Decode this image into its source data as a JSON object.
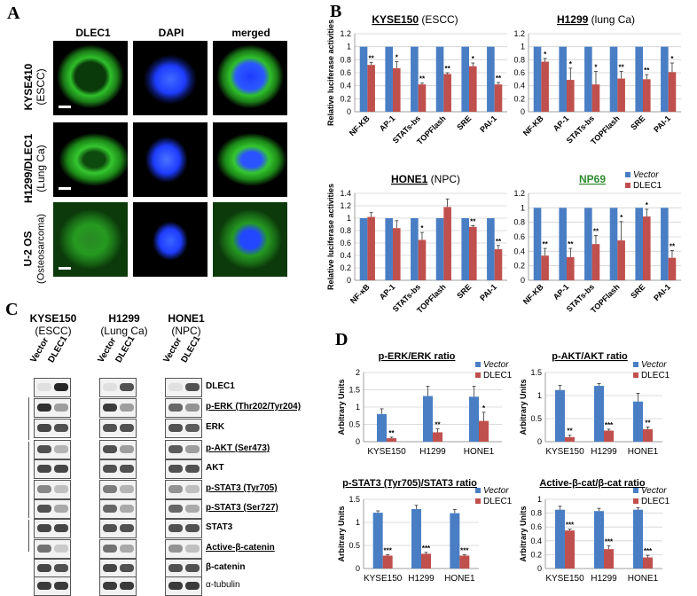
{
  "panels": {
    "a": "A",
    "b": "B",
    "c": "C",
    "d": "D"
  },
  "panel_a": {
    "columns": [
      "DLEC1",
      "DAPI",
      "merged"
    ],
    "rows": [
      {
        "line1": "KYSE410",
        "line2": "(ESCC)"
      },
      {
        "line1": "H1299/DLEC1",
        "line2": "(Lung Ca)"
      },
      {
        "line1": "U-2 OS",
        "line2": "(Osteosarcoma)"
      }
    ],
    "colors": {
      "green": "#2fbf2a",
      "blue": "#1e3dff",
      "black": "#000000"
    }
  },
  "panel_c": {
    "cells": [
      {
        "name": "KYSE150",
        "sub": "(ESCC)"
      },
      {
        "name": "H1299",
        "sub": "(Lung Ca)"
      },
      {
        "name": "HONE1",
        "sub": "(NPC)"
      }
    ],
    "lanes": [
      "Vector",
      "DLEC1"
    ],
    "blots": [
      "DLEC1",
      "p-ERK (Thr202/Tyr204)",
      "ERK",
      "p-AKT (Ser473)",
      "AKT",
      "p-STAT3 (Tyr705)",
      "p-STAT3 (Ser727)",
      "STAT3",
      "Active-β-catenin",
      "β-catenin",
      "α-tubulin"
    ]
  },
  "colors": {
    "vector": "#4a7ec4",
    "dlec1": "#c0504d",
    "grid": "#d0d0d0"
  },
  "chart_data": [
    {
      "id": "b1",
      "type": "bar",
      "title_bold": "KYSE150",
      "title_rest": " (ESCC)",
      "ylabel": "Relative luciferase activities",
      "ylim": [
        0,
        1.2
      ],
      "yticks": [
        "0",
        "0.2",
        "0.4",
        "0.6",
        "0.8",
        "1",
        "1.2"
      ],
      "categories": [
        "NF-KB",
        "AP-1",
        "STATs-bs",
        "TOPFlash",
        "SRE",
        "PAI-1"
      ],
      "series": [
        {
          "name": "Vector",
          "values": [
            1,
            1,
            1,
            1,
            1,
            1
          ]
        },
        {
          "name": "DLEC1",
          "values": [
            0.72,
            0.67,
            0.42,
            0.58,
            0.7,
            0.42
          ],
          "err": [
            0.04,
            0.1,
            0.02,
            0.02,
            0.05,
            0.03
          ]
        }
      ],
      "sig": [
        "**",
        "*",
        "**",
        "**",
        "*",
        "**"
      ]
    },
    {
      "id": "b2",
      "type": "bar",
      "title_bold": "H1299",
      "title_rest": " (lung Ca)",
      "ylabel": "",
      "ylim": [
        0,
        1.2
      ],
      "yticks": [
        "0",
        "0.2",
        "0.4",
        "0.6",
        "0.8",
        "1",
        "1.2"
      ],
      "categories": [
        "NF-KB",
        "AP-1",
        "STATs-bs",
        "TOPFlash",
        "SRE",
        "PAI-1"
      ],
      "series": [
        {
          "name": "Vector",
          "values": [
            1,
            1,
            1,
            1,
            1,
            1
          ]
        },
        {
          "name": "DLEC1",
          "values": [
            0.77,
            0.49,
            0.42,
            0.51,
            0.5,
            0.61
          ],
          "err": [
            0.05,
            0.18,
            0.2,
            0.11,
            0.07,
            0.14
          ]
        }
      ],
      "sig": [
        "*",
        "*",
        "*",
        "**",
        "**",
        "*"
      ]
    },
    {
      "id": "b3",
      "type": "bar",
      "title_bold": "HONE1",
      "title_rest": " (NPC)",
      "ylabel": "Relative luciferase activities",
      "ylim": [
        0,
        1.4
      ],
      "yticks": [
        "0",
        "0.2",
        "0.4",
        "0.6",
        "0.8",
        "1",
        "1.2",
        "1.4"
      ],
      "categories": [
        "NF-κB",
        "AP-1",
        "STATs-bs",
        "TOPFlash",
        "SRE",
        "PAI-1"
      ],
      "series": [
        {
          "name": "Vector",
          "values": [
            1,
            1,
            1,
            1,
            1,
            1
          ]
        },
        {
          "name": "DLEC1",
          "values": [
            1.02,
            0.84,
            0.65,
            1.18,
            0.86,
            0.5
          ],
          "err": [
            0.07,
            0.12,
            0.12,
            0.13,
            0.02,
            0.06
          ]
        }
      ],
      "sig": [
        "",
        "",
        "*",
        "",
        "**",
        "**"
      ]
    },
    {
      "id": "b4",
      "type": "bar",
      "title_bold": "NP69",
      "title_rest": "",
      "ylabel": "",
      "ylim": [
        0,
        1.2
      ],
      "yticks": [
        "0",
        "0.2",
        "0.4",
        "0.6",
        "0.8",
        "1",
        "1.2"
      ],
      "categories": [
        "NF-KB",
        "AP-1",
        "STATs-bs",
        "TOPFlash",
        "SRE",
        "PAI-1"
      ],
      "series": [
        {
          "name": "Vector",
          "values": [
            1,
            1,
            1,
            1,
            1,
            1
          ]
        },
        {
          "name": "DLEC1",
          "values": [
            0.34,
            0.32,
            0.5,
            0.55,
            0.88,
            0.31
          ],
          "err": [
            0.1,
            0.12,
            0.12,
            0.26,
            0.1,
            0.1
          ]
        }
      ],
      "sig": [
        "**",
        "**",
        "**",
        "*",
        "*",
        "**"
      ],
      "legend": [
        "Vector",
        "DLEC1"
      ]
    },
    {
      "id": "d1",
      "type": "bar",
      "title": "p-ERK/ERK ratio",
      "ylabel": "Arbitrary Units",
      "ylim": [
        0,
        2
      ],
      "yticks": [
        "0",
        "0.5",
        "1",
        "1.5",
        "2"
      ],
      "categories": [
        "KYSE150",
        "H1299",
        "HONE1"
      ],
      "series": [
        {
          "name": "Vector",
          "values": [
            0.8,
            1.32,
            1.3
          ],
          "err": [
            0.15,
            0.28,
            0.3
          ]
        },
        {
          "name": "DLEC1",
          "values": [
            0.1,
            0.27,
            0.6
          ],
          "err": [
            0.03,
            0.1,
            0.25
          ]
        }
      ],
      "sig": [
        "**",
        "**",
        "*"
      ],
      "legend": [
        "Vector",
        "DLEC1"
      ]
    },
    {
      "id": "d2",
      "type": "bar",
      "title": "p-AKT/AKT ratio",
      "ylabel": "Arbitrary Units",
      "ylim": [
        0,
        1.5
      ],
      "yticks": [
        "0",
        "0.5",
        "1",
        "1.5"
      ],
      "categories": [
        "KYSE150",
        "H1299",
        "HONE1"
      ],
      "series": [
        {
          "name": "Vector",
          "values": [
            1.12,
            1.21,
            0.87
          ],
          "err": [
            0.1,
            0.05,
            0.18
          ]
        },
        {
          "name": "DLEC1",
          "values": [
            0.1,
            0.24,
            0.27
          ],
          "err": [
            0.04,
            0.03,
            0.05
          ]
        }
      ],
      "sig": [
        "**",
        "***",
        "**"
      ],
      "legend": [
        "Vector",
        "DLEC1"
      ]
    },
    {
      "id": "d3",
      "type": "bar",
      "title": "p-STAT3 (Tyr705)/STAT3 ratio",
      "ylabel": "Arbitrary Units",
      "ylim": [
        0,
        1.5
      ],
      "yticks": [
        "0",
        "0.5",
        "1",
        "1.5"
      ],
      "categories": [
        "KYSE150",
        "H1299",
        "HONE1"
      ],
      "series": [
        {
          "name": "Vector",
          "values": [
            1.21,
            1.29,
            1.2
          ],
          "err": [
            0.04,
            0.08,
            0.08
          ]
        },
        {
          "name": "DLEC1",
          "values": [
            0.28,
            0.32,
            0.28
          ],
          "err": [
            0.02,
            0.03,
            0.02
          ]
        }
      ],
      "sig": [
        "***",
        "***",
        "***"
      ],
      "legend": [
        "Vector",
        "DLEC1"
      ]
    },
    {
      "id": "d4",
      "type": "bar",
      "title": "Active-β-cat/β-cat ratio",
      "ylabel": "Arbitrary Units",
      "ylim": [
        0,
        1
      ],
      "yticks": [
        "0",
        "0.2",
        "0.4",
        "0.6",
        "0.8",
        "1"
      ],
      "categories": [
        "KYSE150",
        "H1299",
        "HONE1"
      ],
      "series": [
        {
          "name": "Vector",
          "values": [
            0.85,
            0.83,
            0.85
          ],
          "err": [
            0.05,
            0.04,
            0.03
          ]
        },
        {
          "name": "DLEC1",
          "values": [
            0.55,
            0.28,
            0.16
          ],
          "err": [
            0.02,
            0.05,
            0.03
          ]
        }
      ],
      "sig": [
        "***",
        "***",
        "***"
      ],
      "legend": [
        "Vector",
        "DLEC1"
      ]
    }
  ]
}
